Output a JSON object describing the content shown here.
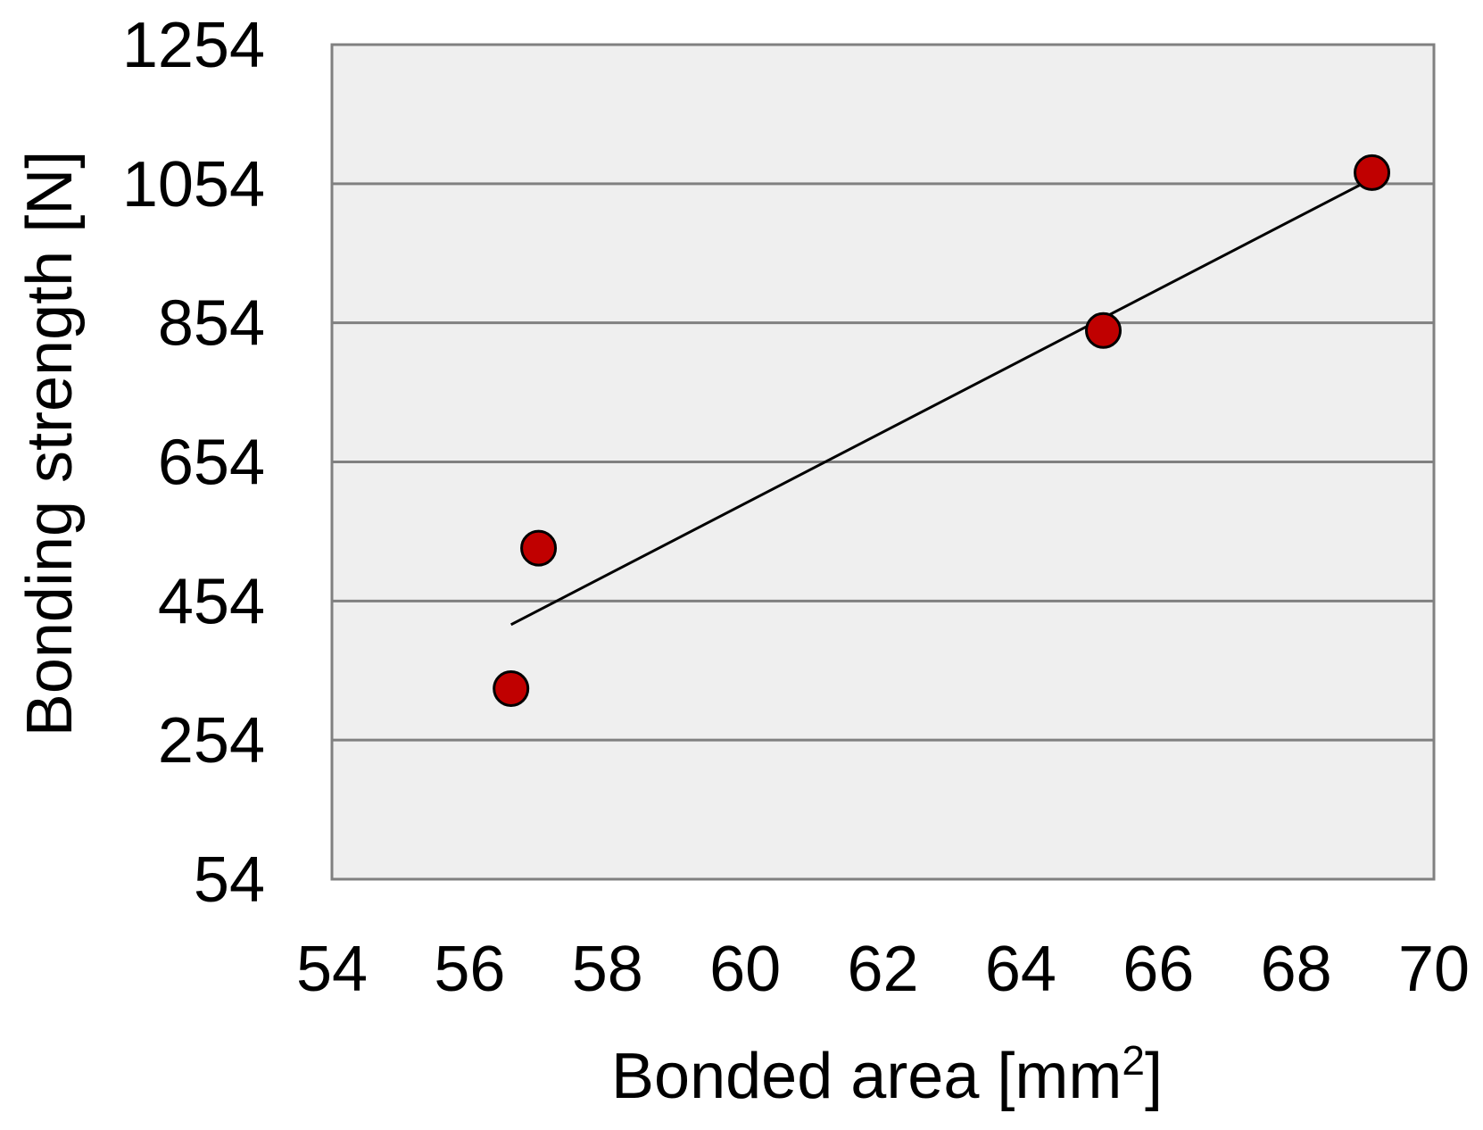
{
  "chart_data": {
    "type": "scatter",
    "title": "",
    "xlabel": "Bonded area [mm",
    "xlabel_superscript": "2",
    "xlabel_suffix": "]",
    "ylabel": "Bonding strength [N]",
    "xlim": [
      54,
      70
    ],
    "ylim": [
      54,
      1254
    ],
    "x_ticks": [
      "54",
      "56",
      "58",
      "60",
      "62",
      "64",
      "66",
      "68",
      "70"
    ],
    "y_ticks": [
      "54",
      "254",
      "454",
      "654",
      "854",
      "1054",
      "1254"
    ],
    "x_tick_values": [
      54,
      56,
      58,
      60,
      62,
      64,
      66,
      68,
      70
    ],
    "y_tick_values": [
      54,
      254,
      454,
      654,
      854,
      1054,
      1254
    ],
    "grid": "horizontal",
    "legend": "none",
    "series": [
      {
        "points": [
          {
            "x": 56.6,
            "y": 328
          },
          {
            "x": 57.0,
            "y": 530
          },
          {
            "x": 65.2,
            "y": 843
          },
          {
            "x": 69.1,
            "y": 1070
          }
        ]
      }
    ],
    "trendline": {
      "x": [
        56.6,
        69.0
      ],
      "y": [
        420,
        1056
      ]
    },
    "colors": {
      "marker_fill": "#c00000",
      "marker_stroke": "#000000",
      "plot_background": "#efefef",
      "grid": "#808080",
      "trendline": "#000000"
    }
  }
}
